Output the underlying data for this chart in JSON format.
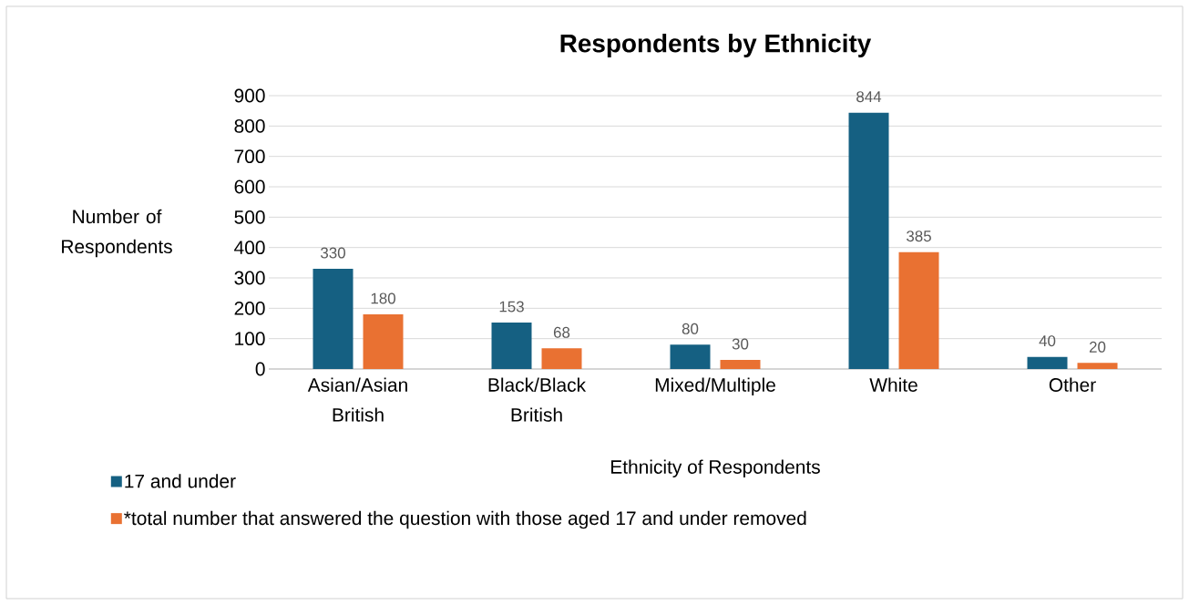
{
  "chart_data": {
    "type": "bar",
    "title": "Respondents by Ethnicity",
    "xlabel": "Ethnicity of Respondents",
    "ylabel": "Number of Respondents",
    "categories": [
      "Asian/Asian British",
      "Black/Black British",
      "Mixed/Multiple",
      "White",
      "Other"
    ],
    "series": [
      {
        "name": "17 and under",
        "color": "#156082",
        "values": [
          330,
          153,
          80,
          844,
          40
        ]
      },
      {
        "name": "*total number that answered the question with those aged 17 and under removed",
        "color": "#e97132",
        "values": [
          180,
          68,
          30,
          385,
          20
        ]
      }
    ],
    "ylim": [
      0,
      900
    ],
    "yticks": [
      0,
      100,
      200,
      300,
      400,
      500,
      600,
      700,
      800,
      900
    ],
    "grid": "y",
    "legend": "bottom left",
    "data_labels": true
  }
}
